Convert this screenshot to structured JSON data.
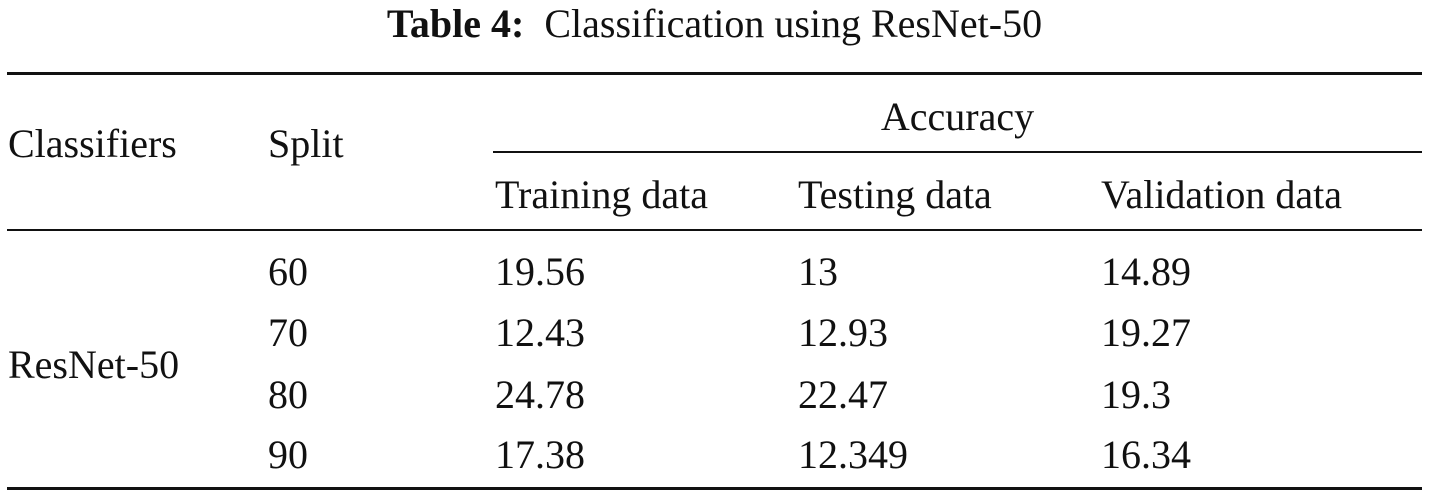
{
  "caption": {
    "label": "Table 4:",
    "text": "Classification using ResNet-50"
  },
  "table": {
    "headers": [
      "Classifiers",
      "Split",
      "Accuracy"
    ],
    "subheaders": [
      "Training data",
      "Testing data",
      "Validation data"
    ],
    "classifier": "ResNet-50",
    "rows": [
      [
        "60",
        "19.56",
        "13",
        "14.89"
      ],
      [
        "70",
        "12.43",
        "12.93",
        "19.27"
      ],
      [
        "80",
        "24.78",
        "22.47",
        "19.3"
      ],
      [
        "90",
        "17.38",
        "12.349",
        "16.34"
      ]
    ]
  }
}
